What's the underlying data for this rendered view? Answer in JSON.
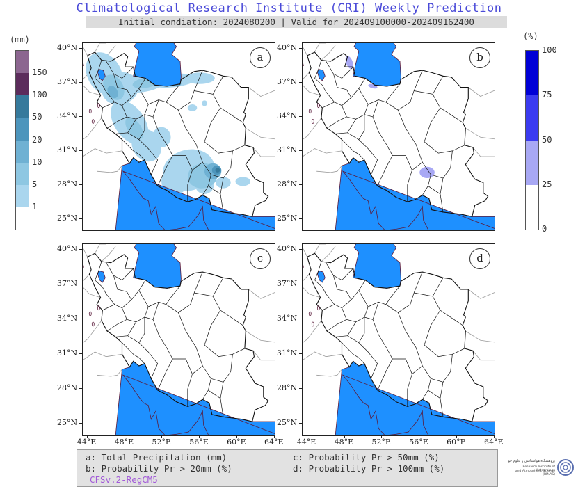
{
  "header": {
    "title": "Climatological Research Institute (CRI) Weekly Prediction",
    "subtitle": "Initial condiation: 2024080200 | Valid for 202409100000-202409162400"
  },
  "left_colorbar": {
    "unit": "(mm)",
    "labels": [
      "150",
      "100",
      "50",
      "20",
      "10",
      "5",
      "1"
    ],
    "colors": [
      "#ffffff",
      "#aad6ee",
      "#8ec7e2",
      "#6fb1d3",
      "#4d95bc",
      "#367a9c",
      "#5c2c5c",
      "#8c6690"
    ]
  },
  "right_colorbar": {
    "unit": "(%)",
    "labels": [
      "100",
      "75",
      "50",
      "25",
      "0"
    ],
    "colors": [
      "#ffffff",
      "#a8a8f4",
      "#3b3bf0",
      "#0000d6"
    ]
  },
  "panels": {
    "a": {
      "label": "a"
    },
    "b": {
      "label": "b"
    },
    "c": {
      "label": "c"
    },
    "d": {
      "label": "d"
    }
  },
  "axes": {
    "lat_labels": [
      "40°N",
      "37°N",
      "34°N",
      "31°N",
      "28°N",
      "25°N"
    ],
    "lon_labels": [
      "44°E",
      "48°E",
      "52°E",
      "56°E",
      "60°E",
      "64°E"
    ]
  },
  "legend": {
    "a": "a: Total Precipitation (mm)",
    "b": "b: Probability Pr > 20mm (%)",
    "c": "c: Probability Pr > 50mm (%)",
    "d": "d: Probability Pr > 100mm (%)",
    "model": "CFSv.2-RegCM5"
  },
  "logo": {
    "name": "پژوهشگاه هواشناسی و علوم جو",
    "line1": "Research Institute of Meteorology",
    "line2": "and Atmospheric Science (RIMAS)",
    "ring_color": "#5a6fb0"
  },
  "map_colors": {
    "sea": "#1e90ff",
    "border": "#111111",
    "outer_border": "#999999"
  }
}
